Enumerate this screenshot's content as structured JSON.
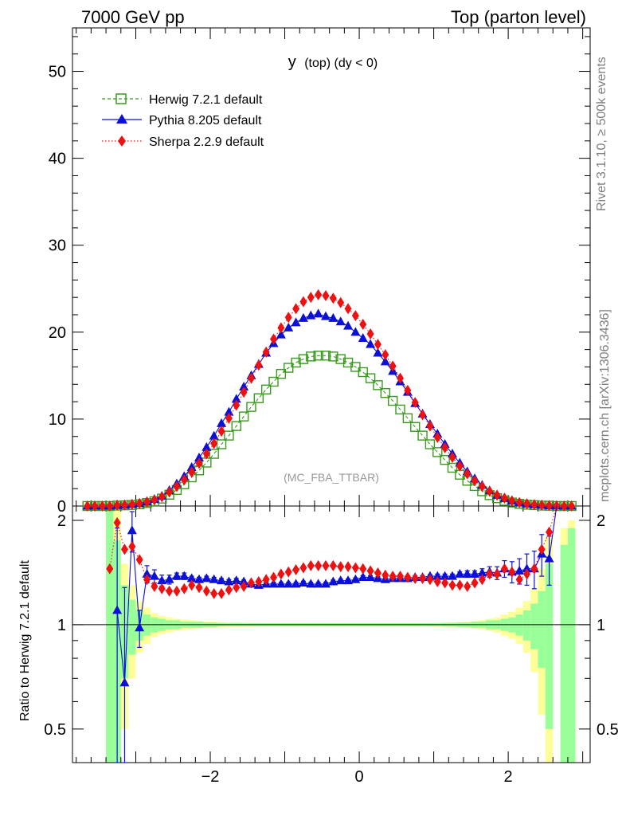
{
  "header": {
    "left": "7000 GeV pp",
    "right": "Top (parton level)"
  },
  "side": {
    "rivet": "Rivet 3.1.10, ≥ 500k events",
    "mcplots": "mcplots.cern.ch [arXiv:1306.3436]"
  },
  "chart_data": {
    "type": "line",
    "title_main": "y",
    "title_sub": "(top)  (dy < 0)",
    "analysis_label": "(MC_FBA_TTBAR)",
    "xlim": [
      -3.85,
      3.1
    ],
    "main_ylim": [
      0,
      55
    ],
    "main_yticks": [
      0,
      10,
      20,
      30,
      40,
      50
    ],
    "ratio_ylim": [
      0.4,
      2.2
    ],
    "ratio_yticks": [
      0.5,
      1,
      2
    ],
    "ratio_ytick_labels": [
      "0.5",
      "1",
      "2"
    ],
    "xticks": [
      -2,
      0,
      2
    ],
    "xtick_labels": [
      "−2",
      "0",
      "2"
    ],
    "ratio_ylabel": "Ratio to Herwig 7.2.1 default",
    "legend": [
      {
        "name": "Herwig 7.2.1 default",
        "color": "#3a9a1e",
        "marker": "open-square",
        "line": "dashed"
      },
      {
        "name": "Pythia 8.205 default",
        "color": "#0a10d8",
        "marker": "triangle",
        "line": "solid"
      },
      {
        "name": "Sherpa 2.2.9 default",
        "color": "#ee1111",
        "marker": "diamond",
        "line": "dotted"
      }
    ],
    "x": [
      -3.65,
      -3.55,
      -3.45,
      -3.35,
      -3.25,
      -3.15,
      -3.05,
      -2.95,
      -2.85,
      -2.75,
      -2.65,
      -2.55,
      -2.45,
      -2.35,
      -2.25,
      -2.15,
      -2.05,
      -1.95,
      -1.85,
      -1.75,
      -1.65,
      -1.55,
      -1.45,
      -1.35,
      -1.25,
      -1.15,
      -1.05,
      -0.95,
      -0.85,
      -0.75,
      -0.65,
      -0.55,
      -0.45,
      -0.35,
      -0.25,
      -0.15,
      -0.05,
      0.05,
      0.15,
      0.25,
      0.35,
      0.45,
      0.55,
      0.65,
      0.75,
      0.85,
      0.95,
      1.05,
      1.15,
      1.25,
      1.35,
      1.45,
      1.55,
      1.65,
      1.75,
      1.85,
      1.95,
      2.05,
      2.15,
      2.25,
      2.35,
      2.45,
      2.55,
      2.65,
      2.75,
      2.85
    ],
    "series": [
      {
        "name": "Herwig 7.2.1 default",
        "values": [
          0,
          0,
          0,
          0,
          0.05,
          0.08,
          0.12,
          0.2,
          0.35,
          0.55,
          0.85,
          1.3,
          1.85,
          2.5,
          3.3,
          4.1,
          5.0,
          6.0,
          7.1,
          8.1,
          9.2,
          10.3,
          11.4,
          12.4,
          13.4,
          14.3,
          15.2,
          15.9,
          16.5,
          16.9,
          17.2,
          17.3,
          17.3,
          17.2,
          16.9,
          16.5,
          16.0,
          15.4,
          14.7,
          13.9,
          13.0,
          12.1,
          11.1,
          10.1,
          9.1,
          8.1,
          7.1,
          6.2,
          5.3,
          4.4,
          3.6,
          2.9,
          2.3,
          1.7,
          1.25,
          0.9,
          0.6,
          0.4,
          0.25,
          0.15,
          0.1,
          0.05,
          0.03,
          0,
          0,
          0
        ]
      },
      {
        "name": "Pythia 8.205 default",
        "values": [
          0,
          0,
          0,
          0,
          0.07,
          0.1,
          0.2,
          0.3,
          0.5,
          0.78,
          1.15,
          1.8,
          2.55,
          3.4,
          4.45,
          5.55,
          6.75,
          8.05,
          9.5,
          10.8,
          12.3,
          13.7,
          15.0,
          16.3,
          17.6,
          18.7,
          19.7,
          20.5,
          21.1,
          21.6,
          21.9,
          22.1,
          21.8,
          21.6,
          21.2,
          20.7,
          20.0,
          19.3,
          18.6,
          17.6,
          16.6,
          15.5,
          14.3,
          13.1,
          11.8,
          10.6,
          9.4,
          8.3,
          7.1,
          6.0,
          4.95,
          3.95,
          3.15,
          2.4,
          1.78,
          1.25,
          0.88,
          0.58,
          0.38,
          0.24,
          0.16,
          0.1,
          0.05,
          0.02,
          0,
          0
        ]
      },
      {
        "name": "Sherpa 2.2.9 default",
        "values": [
          0,
          0,
          0,
          0,
          0.1,
          0.12,
          0.2,
          0.3,
          0.48,
          0.7,
          1.05,
          1.6,
          2.25,
          3.0,
          3.9,
          4.9,
          6.0,
          7.2,
          8.6,
          10.1,
          11.6,
          13.1,
          14.7,
          16.2,
          17.7,
          19.2,
          20.5,
          21.7,
          22.7,
          23.5,
          24.0,
          24.3,
          24.2,
          23.9,
          23.4,
          22.7,
          21.9,
          20.9,
          19.8,
          18.6,
          17.4,
          16.1,
          14.7,
          13.3,
          11.9,
          10.5,
          9.2,
          7.9,
          6.7,
          5.6,
          4.6,
          3.7,
          2.9,
          2.25,
          1.7,
          1.25,
          0.9,
          0.6,
          0.4,
          0.26,
          0.16,
          0.1,
          0.06,
          0.03,
          0,
          0
        ]
      }
    ],
    "ratios": {
      "x": [
        -3.35,
        -3.25,
        -3.15,
        -3.05,
        -2.95,
        -2.85,
        -2.75,
        -2.65,
        -2.55,
        -2.45,
        -2.35,
        -2.25,
        -2.15,
        -2.05,
        -1.95,
        -1.85,
        -1.75,
        -1.65,
        -1.55,
        -1.45,
        -1.35,
        -1.25,
        -1.15,
        -1.05,
        -0.95,
        -0.85,
        -0.75,
        -0.65,
        -0.55,
        -0.45,
        -0.35,
        -0.25,
        -0.15,
        -0.05,
        0.05,
        0.15,
        0.25,
        0.35,
        0.45,
        0.55,
        0.65,
        0.75,
        0.85,
        0.95,
        1.05,
        1.15,
        1.25,
        1.35,
        1.45,
        1.55,
        1.65,
        1.75,
        1.85,
        1.95,
        2.05,
        2.15,
        2.25,
        2.35,
        2.45,
        2.55
      ],
      "pythia": [
        null,
        1.1,
        0.68,
        1.87,
        0.98,
        1.4,
        1.38,
        1.34,
        1.35,
        1.38,
        1.38,
        1.36,
        1.35,
        1.36,
        1.35,
        1.34,
        1.33,
        1.34,
        1.33,
        1.31,
        1.3,
        1.31,
        1.31,
        1.31,
        1.31,
        1.31,
        1.32,
        1.31,
        1.31,
        1.31,
        1.33,
        1.34,
        1.34,
        1.35,
        1.37,
        1.37,
        1.36,
        1.35,
        1.36,
        1.36,
        1.36,
        1.37,
        1.37,
        1.38,
        1.38,
        1.38,
        1.38,
        1.4,
        1.4,
        1.4,
        1.41,
        1.42,
        1.41,
        1.45,
        1.42,
        1.43,
        1.45,
        1.45,
        1.6,
        1.55
      ],
      "sherpa": [
        1.45,
        1.97,
        1.65,
        1.68,
        1.54,
        1.35,
        1.29,
        1.27,
        1.25,
        1.25,
        1.27,
        1.3,
        1.28,
        1.25,
        1.23,
        1.23,
        1.26,
        1.28,
        1.29,
        1.32,
        1.33,
        1.35,
        1.37,
        1.4,
        1.42,
        1.44,
        1.46,
        1.48,
        1.48,
        1.48,
        1.48,
        1.47,
        1.47,
        1.46,
        1.45,
        1.43,
        1.41,
        1.39,
        1.38,
        1.38,
        1.37,
        1.36,
        1.36,
        1.35,
        1.33,
        1.32,
        1.3,
        1.3,
        1.29,
        1.32,
        1.35,
        1.4,
        1.4,
        1.45,
        1.42,
        1.35,
        1.4,
        1.45,
        1.65,
        1.85
      ],
      "pythia_err": [
        0,
        0.8,
        0.6,
        0.25,
        0.12,
        0.08,
        0.06,
        0.05,
        0.04,
        0.03,
        0.03,
        0.02,
        0.02,
        0.02,
        0.02,
        0.02,
        0.02,
        0.02,
        0.015,
        0.015,
        0.015,
        0.015,
        0.015,
        0.015,
        0.015,
        0.015,
        0.015,
        0.015,
        0.015,
        0.015,
        0.015,
        0.015,
        0.015,
        0.015,
        0.015,
        0.015,
        0.015,
        0.015,
        0.015,
        0.015,
        0.015,
        0.015,
        0.015,
        0.015,
        0.02,
        0.02,
        0.02,
        0.02,
        0.03,
        0.03,
        0.04,
        0.05,
        0.06,
        0.08,
        0.1,
        0.12,
        0.15,
        0.18,
        0.22,
        0.25
      ],
      "band_green": [
        1.8,
        0.75,
        0.3,
        0.18,
        0.1,
        0.07,
        0.05,
        0.04,
        0.03,
        0.03,
        0.02,
        0.02,
        0.02,
        0.015,
        0.015,
        0.012,
        0.01,
        0.01,
        0.01,
        0.01,
        0.01,
        0.01,
        0.01,
        0.01,
        0.01,
        0.01,
        0.01,
        0.01,
        0.01,
        0.01,
        0.01,
        0.01,
        0.01,
        0.01,
        0.01,
        0.01,
        0.01,
        0.01,
        0.01,
        0.01,
        0.01,
        0.01,
        0.01,
        0.01,
        0.01,
        0.012,
        0.012,
        0.015,
        0.015,
        0.02,
        0.02,
        0.03,
        0.03,
        0.04,
        0.05,
        0.07,
        0.1,
        0.15,
        0.25,
        0.5
      ],
      "band_yellow": [
        2.0,
        1.2,
        0.5,
        0.3,
        0.17,
        0.12,
        0.08,
        0.06,
        0.05,
        0.04,
        0.035,
        0.03,
        0.025,
        0.02,
        0.02,
        0.018,
        0.016,
        0.015,
        0.014,
        0.013,
        0.013,
        0.012,
        0.012,
        0.012,
        0.012,
        0.012,
        0.012,
        0.012,
        0.012,
        0.012,
        0.012,
        0.012,
        0.012,
        0.012,
        0.012,
        0.012,
        0.012,
        0.012,
        0.012,
        0.012,
        0.012,
        0.012,
        0.012,
        0.013,
        0.014,
        0.015,
        0.016,
        0.018,
        0.02,
        0.025,
        0.03,
        0.04,
        0.05,
        0.07,
        0.09,
        0.12,
        0.17,
        0.27,
        0.45,
        0.8
      ]
    }
  }
}
